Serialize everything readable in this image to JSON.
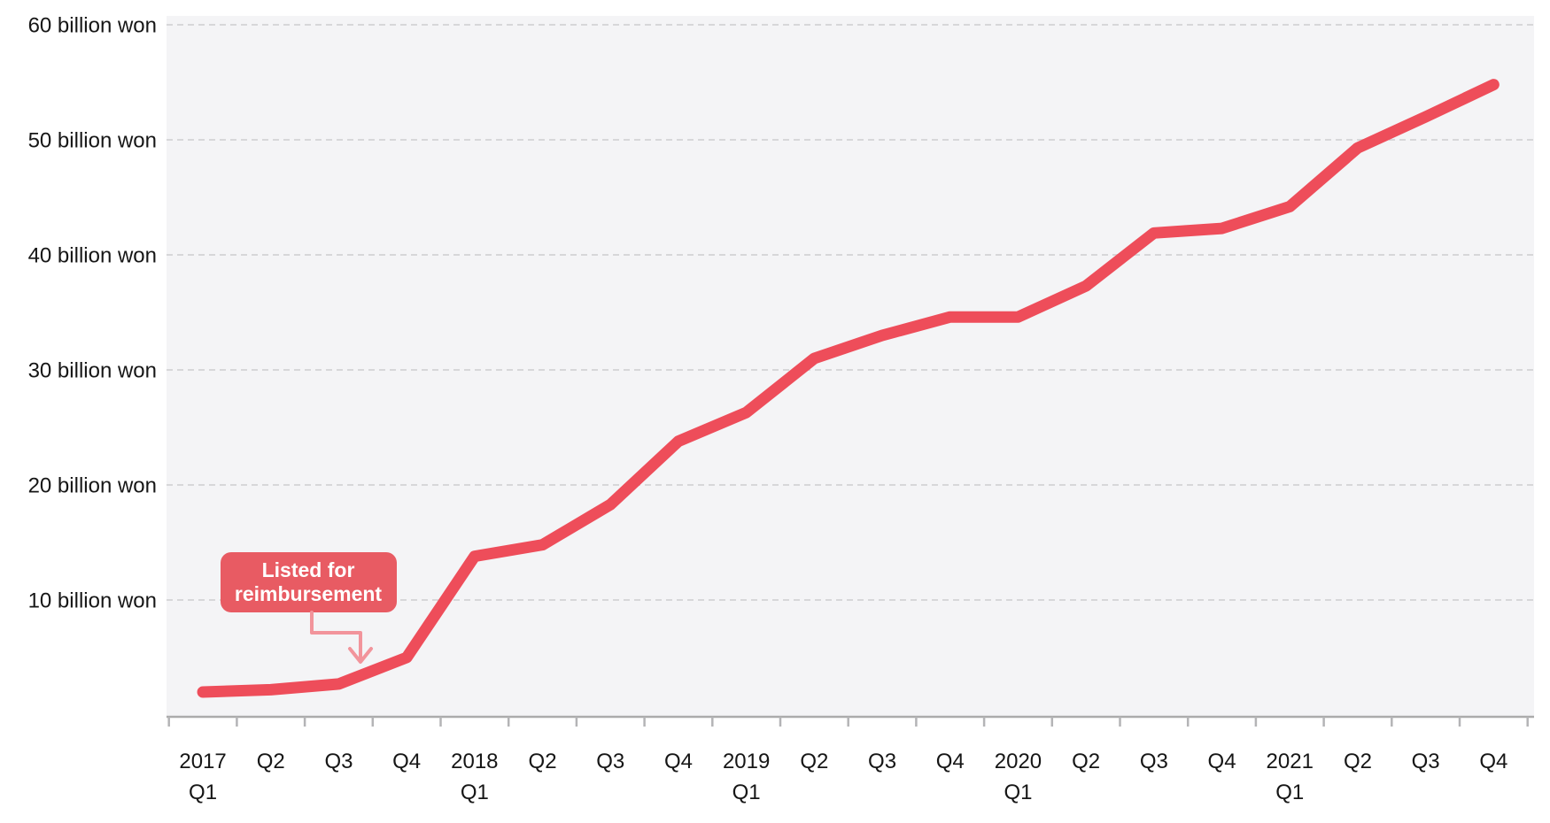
{
  "chart_data": {
    "type": "line",
    "title": "",
    "unit": "billion won",
    "categories": [
      "2017 Q1",
      "Q2",
      "Q3",
      "Q4",
      "2018 Q1",
      "Q2",
      "Q3",
      "Q4",
      "2019 Q1",
      "Q2",
      "Q3",
      "Q4",
      "2020 Q1",
      "Q2",
      "Q3",
      "Q4",
      "2021 Q1",
      "Q2",
      "Q3",
      "Q4"
    ],
    "x_label_lines": [
      [
        "2017",
        "Q1"
      ],
      [
        "Q2"
      ],
      [
        "Q3"
      ],
      [
        "Q4"
      ],
      [
        "2018",
        "Q1"
      ],
      [
        "Q2"
      ],
      [
        "Q3"
      ],
      [
        "Q4"
      ],
      [
        "2019",
        "Q1"
      ],
      [
        "Q2"
      ],
      [
        "Q3"
      ],
      [
        "Q4"
      ],
      [
        "2020",
        "Q1"
      ],
      [
        "Q2"
      ],
      [
        "Q3"
      ],
      [
        "Q4"
      ],
      [
        "2021",
        "Q1"
      ],
      [
        "Q2"
      ],
      [
        "Q3"
      ],
      [
        "Q4"
      ]
    ],
    "values": [
      2.0,
      2.2,
      2.7,
      5.0,
      13.8,
      14.8,
      18.3,
      23.8,
      26.3,
      31.0,
      33.0,
      34.6,
      34.6,
      37.3,
      41.9,
      42.3,
      44.2,
      49.3,
      52.0,
      54.8
    ],
    "y_tick_values": [
      10,
      20,
      30,
      40,
      50,
      60
    ],
    "y_tick_labels": [
      "10 billion won",
      "20 billion won",
      "30 billion won",
      "40 billion won",
      "50 billion won",
      "60 billion won"
    ],
    "ylim": [
      0,
      60
    ],
    "grid": "horizontal-dashed",
    "legend": "none",
    "annotation": {
      "lines": [
        "Listed for",
        "reimbursement"
      ],
      "points_to": "line between 2017 Q3 and 2017 Q4"
    }
  },
  "colors": {
    "line": "#ee4d5a",
    "annotation_bg": "#e85b63",
    "annotation_text": "#ffffff",
    "arrow": "#f2949b",
    "plot_bg": "#f4f4f6",
    "gridline": "#d7d7d9",
    "axis_line": "#ababab",
    "tick": "#b4b4b6",
    "text": "#161616",
    "page_bg": "#ffffff"
  }
}
